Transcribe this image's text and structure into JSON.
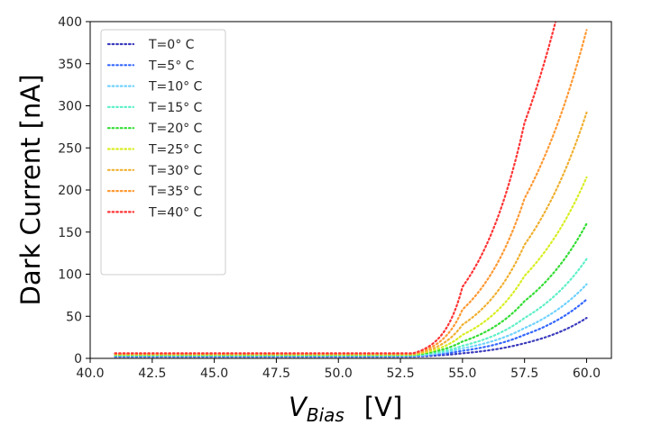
{
  "chart_data": {
    "type": "line",
    "xlabel_main": "V",
    "xlabel_sub": "Bias",
    "xlabel_unit": "[V]",
    "ylabel": "Dark Current  [nA]",
    "xlim": [
      40.0,
      61.0
    ],
    "ylim": [
      0,
      400
    ],
    "xticks": [
      "40.0",
      "42.5",
      "45.0",
      "47.5",
      "50.0",
      "52.5",
      "55.0",
      "57.5",
      "60.0"
    ],
    "yticks": [
      "0",
      "50",
      "100",
      "150",
      "200",
      "250",
      "300",
      "350",
      "400"
    ],
    "grid": false,
    "legend_position": "upper-left",
    "line_style": "dotted",
    "x_start": 41.0,
    "x_knee": 53.0,
    "x_end": 60.0,
    "series": [
      {
        "name": "T=0° C",
        "color": "#3b3bbd",
        "baseline": 2.0,
        "x": [
          53.0,
          55.0,
          57.5,
          60.0
        ],
        "y": [
          2.0,
          6,
          18,
          48
        ]
      },
      {
        "name": "T=5° C",
        "color": "#3366ff",
        "baseline": 2.5,
        "x": [
          53.0,
          55.0,
          57.5,
          60.0
        ],
        "y": [
          2.5,
          9,
          28,
          70
        ]
      },
      {
        "name": "T=10° C",
        "color": "#6fd2ff",
        "baseline": 3.0,
        "x": [
          53.0,
          55.0,
          57.5,
          60.0
        ],
        "y": [
          3.0,
          12,
          36,
          88
        ]
      },
      {
        "name": "T=15° C",
        "color": "#5ff0c8",
        "baseline": 3.5,
        "x": [
          53.0,
          55.0,
          57.5,
          60.0
        ],
        "y": [
          3.5,
          15,
          48,
          118
        ]
      },
      {
        "name": "T=20° C",
        "color": "#33dd33",
        "baseline": 4.0,
        "x": [
          53.0,
          55.0,
          57.5,
          60.0
        ],
        "y": [
          4.0,
          20,
          68,
          160
        ]
      },
      {
        "name": "T=25° C",
        "color": "#d8ee22",
        "baseline": 4.5,
        "x": [
          53.0,
          55.0,
          57.5,
          60.0
        ],
        "y": [
          4.5,
          28,
          98,
          215
        ]
      },
      {
        "name": "T=30° C",
        "color": "#f0b030",
        "baseline": 5.0,
        "x": [
          53.0,
          55.0,
          57.5,
          60.0
        ],
        "y": [
          5.0,
          40,
          135,
          292
        ]
      },
      {
        "name": "T=35° C",
        "color": "#ff9933",
        "baseline": 5.5,
        "x": [
          53.0,
          55.0,
          57.5,
          60.0
        ],
        "y": [
          5.5,
          58,
          190,
          390
        ]
      },
      {
        "name": "T=40° C",
        "color": "#ff3333",
        "baseline": 6.0,
        "x": [
          53.0,
          55.0,
          57.5,
          58.75
        ],
        "y": [
          6.0,
          85,
          280,
          400
        ]
      }
    ]
  }
}
